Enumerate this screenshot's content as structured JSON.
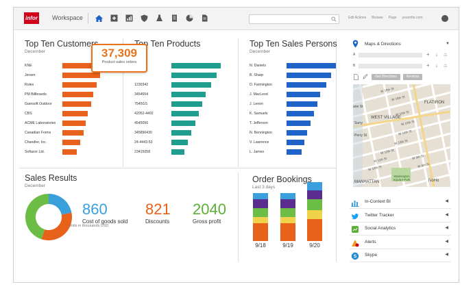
{
  "header": {
    "logo": "infor",
    "workspace": "Workspace",
    "nav_icons": [
      "home-icon",
      "plus-box-icon",
      "chart-box-icon",
      "shield-icon",
      "lab-flask-icon",
      "document-icon",
      "pie-icon",
      "file-icon"
    ],
    "links": [
      "Edit Actions",
      "Browse",
      "Page",
      "yourinfor.com"
    ]
  },
  "customers": {
    "title": "Top Ten Customers",
    "subtitle": "December",
    "rows": [
      {
        "label": "KNE",
        "value": 100
      },
      {
        "label": "Jersen",
        "value": 88
      },
      {
        "label": "Rolex",
        "value": 80
      },
      {
        "label": "PM Billboards",
        "value": 72
      },
      {
        "label": "Gamsoft Outdoor",
        "value": 68
      },
      {
        "label": "CBS",
        "value": 60
      },
      {
        "label": "ACME Laboratories",
        "value": 55
      },
      {
        "label": "Canadian Forms",
        "value": 50
      },
      {
        "label": "Chandler, Inc.",
        "value": 42
      },
      {
        "label": "Sofiacor Ltd.",
        "value": 34
      }
    ],
    "callout_value": "37,309",
    "callout_label": "Product sales orders"
  },
  "products": {
    "title": "Top Ten Products",
    "rows": [
      {
        "label": "",
        "value": 100
      },
      {
        "label": "",
        "value": 92
      },
      {
        "label": "1230342",
        "value": 80
      },
      {
        "label": "3454654",
        "value": 70
      },
      {
        "label": "7545GS",
        "value": 62
      },
      {
        "label": "42052-4402",
        "value": 55
      },
      {
        "label": "4545056",
        "value": 48
      },
      {
        "label": "345890430",
        "value": 40
      },
      {
        "label": "24-4443-53",
        "value": 34
      },
      {
        "label": "23415058",
        "value": 27
      }
    ]
  },
  "persons": {
    "title": "Top Ten Sales Persons",
    "subtitle": "December",
    "rows": [
      {
        "label": "N. Daniels",
        "value": 100
      },
      {
        "label": "B. Sharp",
        "value": 90
      },
      {
        "label": "D. Farmington",
        "value": 80
      },
      {
        "label": "J. MacLeod",
        "value": 68
      },
      {
        "label": "J. Lenon",
        "value": 62
      },
      {
        "label": "K. Samuels",
        "value": 55
      },
      {
        "label": "T. Jefferson",
        "value": 48
      },
      {
        "label": "N. Bennington",
        "value": 42
      },
      {
        "label": "V. Lawrence",
        "value": 36
      },
      {
        "label": "L. James",
        "value": 30
      }
    ]
  },
  "sales": {
    "title": "Sales Results",
    "subtitle": "December",
    "donut": [
      {
        "value": 22,
        "color": "#3aa0dc"
      },
      {
        "value": 33,
        "color": "#e8611a"
      },
      {
        "value": 45,
        "color": "#6cbd45"
      }
    ],
    "kpis": [
      {
        "value": "860",
        "label": "Cost of goods sold",
        "color": "#3a9fdc"
      },
      {
        "value": "821",
        "label": "Discounts",
        "color": "#e8611a"
      },
      {
        "value": "2040",
        "label": "Gross profit",
        "color": "#5ab032"
      }
    ],
    "units": "Units in thousands USD"
  },
  "orders": {
    "title": "Order Bookings",
    "subtitle": "Last 3 days",
    "categories": [
      "9/18",
      "9/19",
      "9/20"
    ],
    "segment_colors": [
      "#e8611a",
      "#f0d34a",
      "#6cbd45",
      "#5b2d8e",
      "#3a9fdc"
    ],
    "stacks": [
      [
        8,
        3,
        4,
        4,
        3
      ],
      [
        8,
        3,
        4,
        4,
        3
      ],
      [
        10,
        4,
        5,
        4,
        4
      ]
    ]
  },
  "maps": {
    "title": "Maps & Directions",
    "route_labels": [
      "A",
      "B"
    ],
    "get_directions": "Get Directions",
    "reverse": "Reverse",
    "map_labels": [
      "FLATIRON",
      "WEST VILLAGE",
      "Surry",
      "MANHATTAN",
      "Washington Square Park",
      "NoHo",
      "ane St",
      "W 19th St",
      "W 18th St",
      "W 16th St",
      "W 15th St",
      "W 14th St",
      "W 13th St",
      "W 12th St",
      "W 11th St",
      "W 10th St",
      "W 9th St",
      "W 8th St",
      "Perry St"
    ]
  },
  "widgets": [
    {
      "label": "In-Context BI",
      "icon": "bar-chart-icon",
      "color": "#3a9fdc"
    },
    {
      "label": "Twitter Tracker",
      "icon": "twitter-icon",
      "color": "#1da1f2"
    },
    {
      "label": "Social Analytics",
      "icon": "social-analytics-icon",
      "color": "#5ab032"
    },
    {
      "label": "Alerts",
      "icon": "alert-icon",
      "color": "#e8a01a"
    },
    {
      "label": "Skype",
      "icon": "skype-icon",
      "color": "#1a8ad4"
    }
  ],
  "colors": {
    "customers_bar": "#e8611a",
    "products_bar": "#1f9e8f",
    "persons_bar": "#1f63c8",
    "brand": "#d0021b"
  }
}
